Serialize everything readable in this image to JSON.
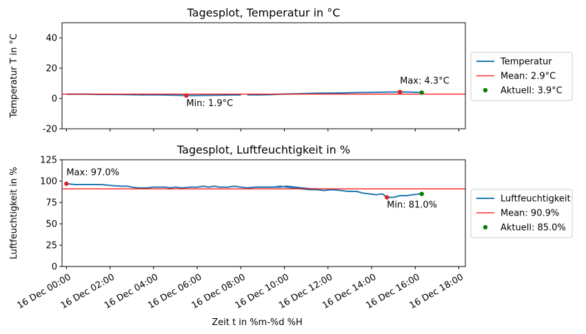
{
  "chart_data": [
    {
      "type": "line",
      "title": "Tagesplot, Temperatur in °C",
      "ylabel": "Temperatur T in °C",
      "xlabel": "",
      "ylim": [
        -20,
        50
      ],
      "yticks": [
        -20,
        0,
        20,
        40
      ],
      "grid": false,
      "legend_placement": "right",
      "series": [
        {
          "name": "Temperatur",
          "color": "#1f77b4",
          "segments": [
            [
              [
                0.0,
                2.8
              ],
              [
                0.5,
                2.8
              ],
              [
                1.0,
                2.8
              ],
              [
                1.5,
                2.7
              ],
              [
                2.0,
                2.7
              ],
              [
                2.5,
                2.6
              ],
              [
                3.0,
                2.5
              ],
              [
                3.5,
                2.4
              ],
              [
                4.0,
                2.4
              ],
              [
                4.5,
                2.3
              ],
              [
                5.0,
                2.2
              ],
              [
                5.5,
                1.9
              ],
              [
                6.0,
                2.0
              ],
              [
                6.5,
                2.1
              ],
              [
                7.0,
                2.2
              ],
              [
                7.5,
                2.3
              ],
              [
                8.0,
                2.3
              ]
            ],
            [
              [
                8.3,
                2.4
              ],
              [
                8.8,
                2.4
              ],
              [
                9.3,
                2.5
              ],
              [
                9.8,
                2.8
              ],
              [
                10.3,
                3.0
              ],
              [
                10.8,
                3.2
              ],
              [
                11.3,
                3.4
              ],
              [
                11.8,
                3.5
              ],
              [
                12.3,
                3.6
              ],
              [
                12.8,
                3.7
              ],
              [
                13.3,
                3.9
              ],
              [
                13.8,
                4.0
              ],
              [
                14.3,
                4.1
              ],
              [
                14.8,
                4.2
              ],
              [
                15.3,
                4.3
              ],
              [
                15.8,
                4.2
              ],
              [
                16.3,
                3.9
              ]
            ]
          ]
        }
      ],
      "mean": {
        "label": "Mean: 2.9°C",
        "value": 2.9,
        "color": "#ff0000"
      },
      "max": {
        "x": 15.3,
        "y": 4.3,
        "label": "Max: 4.3°C",
        "color": "#d62728"
      },
      "min": {
        "x": 5.5,
        "y": 1.9,
        "label": "Min: 1.9°C",
        "color": "#d62728"
      },
      "current": {
        "x": 16.3,
        "y": 3.9,
        "label": "Aktuell: 3.9°C",
        "color": "#008000"
      }
    },
    {
      "type": "line",
      "title": "Tagesplot, Luftfeuchtigkeit in %",
      "ylabel": "Luftfeuchtigkeit  in %",
      "xlabel": "Zeit t in %m-%d %H",
      "ylim": [
        0,
        125
      ],
      "yticks": [
        0,
        25,
        50,
        75,
        100,
        125
      ],
      "grid": false,
      "legend_placement": "right",
      "series": [
        {
          "name": "Luftfeuchtigkeit",
          "color": "#1f77b4",
          "segments": [
            [
              [
                0.0,
                97
              ],
              [
                0.4,
                96
              ],
              [
                0.8,
                96
              ],
              [
                1.2,
                96
              ],
              [
                1.6,
                96
              ],
              [
                2.0,
                95
              ],
              [
                2.5,
                94
              ],
              [
                2.8,
                94
              ],
              [
                3.0,
                93
              ],
              [
                3.3,
                92
              ],
              [
                3.7,
                92
              ],
              [
                4.0,
                93
              ],
              [
                4.5,
                93
              ],
              [
                4.8,
                92
              ],
              [
                5.0,
                93
              ],
              [
                5.3,
                92
              ],
              [
                5.7,
                93
              ],
              [
                6.0,
                93
              ],
              [
                6.3,
                94
              ],
              [
                6.5,
                93
              ],
              [
                6.8,
                94
              ],
              [
                7.0,
                93
              ],
              [
                7.4,
                93
              ],
              [
                7.7,
                94
              ],
              [
                8.0,
                93
              ],
              [
                8.3,
                92
              ],
              [
                8.7,
                93
              ],
              [
                9.1,
                93
              ],
              [
                9.5,
                93
              ],
              [
                9.8,
                93
              ],
              [
                10.1,
                94
              ],
              [
                10.5,
                93
              ],
              [
                10.8,
                92
              ],
              [
                11.2,
                91
              ],
              [
                11.5,
                91
              ]
            ],
            [
              [
                8.3,
                92
              ],
              [
                8.7,
                93
              ],
              [
                9.1,
                93
              ],
              [
                9.5,
                93
              ],
              [
                9.8,
                94
              ],
              [
                10.1,
                93
              ],
              [
                10.5,
                92
              ],
              [
                10.8,
                91
              ],
              [
                11.2,
                90
              ],
              [
                11.5,
                90
              ],
              [
                11.8,
                89
              ],
              [
                12.2,
                90
              ],
              [
                12.6,
                89
              ],
              [
                12.9,
                88
              ],
              [
                13.3,
                88
              ],
              [
                13.6,
                86
              ],
              [
                13.9,
                85
              ],
              [
                14.2,
                84
              ],
              [
                14.5,
                85
              ],
              [
                14.7,
                81
              ],
              [
                15.0,
                81
              ],
              [
                15.3,
                83
              ],
              [
                15.6,
                83
              ],
              [
                15.9,
                84
              ],
              [
                16.2,
                85
              ],
              [
                16.3,
                85
              ]
            ]
          ]
        }
      ],
      "mean": {
        "label": "Mean: 90.9%",
        "value": 90.9,
        "color": "#ff0000"
      },
      "max": {
        "x": 0.0,
        "y": 97.0,
        "label": "Max: 97.0%",
        "color": "#d62728"
      },
      "min": {
        "x": 14.7,
        "y": 81.0,
        "label": "Min: 81.0%",
        "color": "#d62728"
      },
      "current": {
        "x": 16.3,
        "y": 85.0,
        "label": "Aktuell: 85.0%",
        "color": "#008000"
      }
    }
  ],
  "xaxis": {
    "xlim": [
      -0.2,
      18.3
    ],
    "ticks": [
      {
        "x": 0,
        "label": "16 Dec 00:00"
      },
      {
        "x": 2,
        "label": "16 Dec 02:00"
      },
      {
        "x": 4,
        "label": "16 Dec 04:00"
      },
      {
        "x": 6,
        "label": "16 Dec 06:00"
      },
      {
        "x": 8,
        "label": "16 Dec 08:00"
      },
      {
        "x": 10,
        "label": "16 Dec 10:00"
      },
      {
        "x": 12,
        "label": "16 Dec 12:00"
      },
      {
        "x": 14,
        "label": "16 Dec 14:00"
      },
      {
        "x": 16,
        "label": "16 Dec 16:00"
      },
      {
        "x": 18,
        "label": "16 Dec 18:00"
      }
    ]
  }
}
